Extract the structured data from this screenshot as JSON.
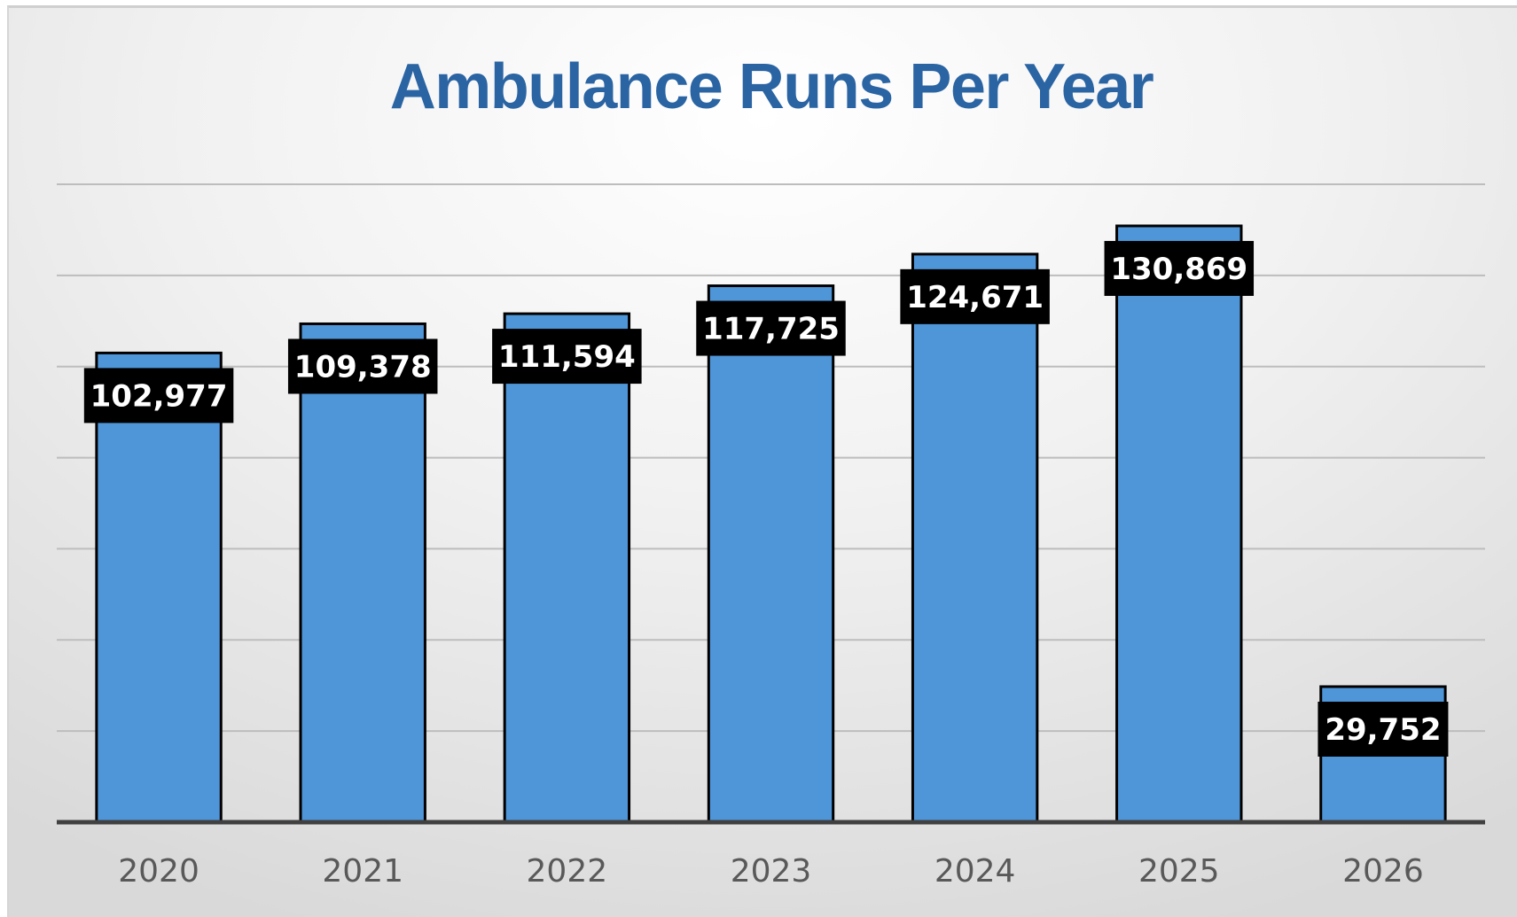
{
  "chart_data": {
    "type": "bar",
    "title": "Ambulance Runs Per Year",
    "categories": [
      "2020",
      "2021",
      "2022",
      "2023",
      "2024",
      "2025",
      "2026"
    ],
    "values": [
      102977,
      109378,
      111594,
      117725,
      124671,
      130869,
      29752
    ],
    "data_labels": [
      "102,977",
      "109,378",
      "111,594",
      "117,725",
      "124,671",
      "130,869",
      "29,752"
    ],
    "ylim": [
      0,
      140000
    ],
    "y_gridline_step": 20000,
    "grid": true,
    "y_tick_labels_visible": false,
    "legend": "none",
    "colors": {
      "bar_fill": "#4f96d9",
      "bar_outline": "#000000",
      "label_background": "#000000",
      "label_text": "#ffffff",
      "title": "#2a64a3",
      "gridline": "#bdbdbd",
      "axis": "#404040"
    }
  }
}
